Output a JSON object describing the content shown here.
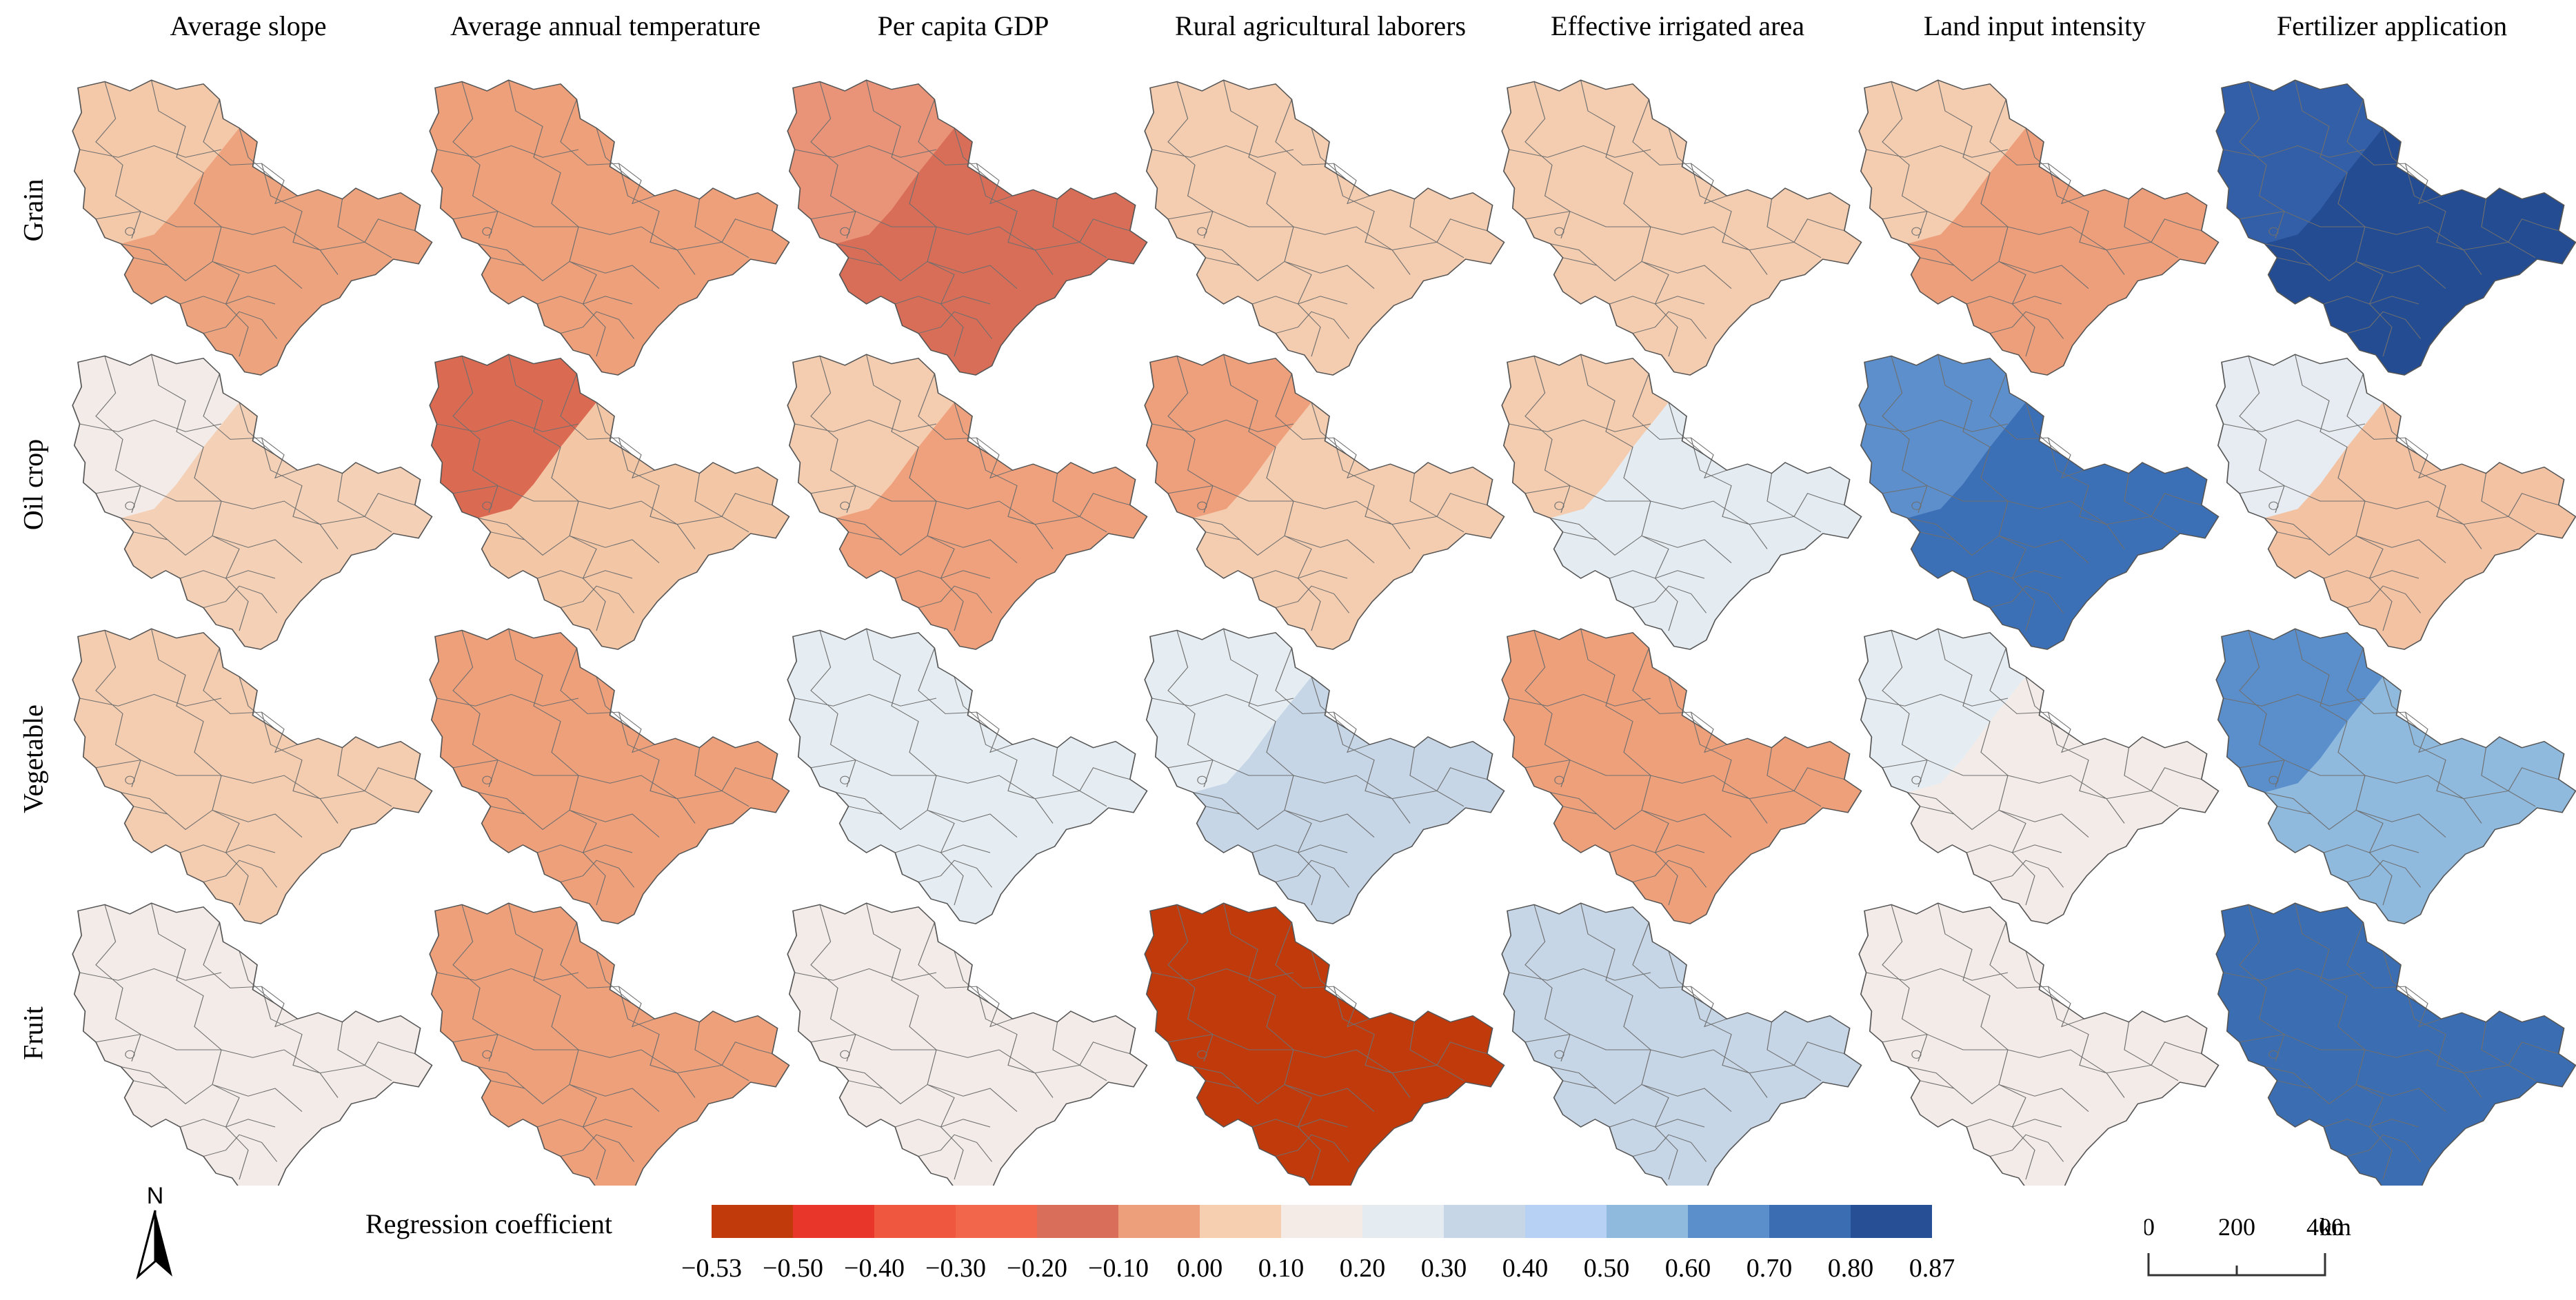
{
  "columns": [
    "Average slope",
    "Average annual temperature",
    "Per capita GDP",
    "Rural agricultural laborers",
    "Effective irrigated area",
    "Land input intensity",
    "Fertilizer application"
  ],
  "rows": [
    "Grain",
    "Oil crop",
    "Vegetable",
    "Fruit"
  ],
  "legend": {
    "title": "Regression coefficient",
    "ticks": [
      "−0.53",
      "−0.50",
      "−0.40",
      "−0.30",
      "−0.20",
      "−0.10",
      "0.00",
      "0.10",
      "0.20",
      "0.30",
      "0.40",
      "0.50",
      "0.60",
      "0.70",
      "0.80",
      "0.87"
    ],
    "colors": [
      "#c13a0c",
      "#e8372a",
      "#ef583f",
      "#f2674c",
      "#d96f5a",
      "#ed9f7b",
      "#f6cfb1",
      "#f5ebe6",
      "#e5ecf1",
      "#c6d6e7",
      "#b7d1f4",
      "#8fb9dd",
      "#5b8fcb",
      "#3a6db2",
      "#264f96"
    ]
  },
  "panels": [
    [
      {
        "c": "#eda37d",
        "w": "#f4c9aa"
      },
      {
        "c": "#eea07b"
      },
      {
        "c": "#d96e58",
        "w": "#e99478"
      },
      {
        "c": "#f4cdb0"
      },
      {
        "c": "#f4cdb0"
      },
      {
        "c": "#ed9f7b",
        "w": "#f4cdb0"
      },
      {
        "c": "#234c92",
        "w": "#325fa7"
      }
    ],
    [
      {
        "c": "#f3d0b6",
        "w": "#f3ebe8"
      },
      {
        "c": "#f3c6a6",
        "w": "#db6a52"
      },
      {
        "c": "#eea17c",
        "w": "#f4cdb0"
      },
      {
        "c": "#f4cdb0",
        "w": "#ee9f7c"
      },
      {
        "c": "#e4ecf2",
        "w": "#f4cdb0"
      },
      {
        "c": "#3b6fb6",
        "w": "#5c8fcb"
      },
      {
        "c": "#f3c2a2",
        "w": "#e6ecf1"
      }
    ],
    [
      {
        "c": "#f4cdb0"
      },
      {
        "c": "#eea07b"
      },
      {
        "c": "#e6edf2"
      },
      {
        "c": "#c6d6e7",
        "w": "#e6edf2"
      },
      {
        "c": "#eea07b"
      },
      {
        "c": "#f3ebe8",
        "w": "#e6edf2"
      },
      {
        "c": "#8fb9dd",
        "w": "#5b8fcb"
      }
    ],
    [
      {
        "c": "#f3ebe8"
      },
      {
        "c": "#eea07b"
      },
      {
        "c": "#f3ebe8"
      },
      {
        "c": "#c13a0c"
      },
      {
        "c": "#c6d6e7"
      },
      {
        "c": "#f3ebe8"
      },
      {
        "c": "#3a6db2"
      }
    ]
  ],
  "north_label": "N",
  "scale": {
    "labels": [
      "0",
      "200",
      "400"
    ],
    "unit": "km"
  }
}
